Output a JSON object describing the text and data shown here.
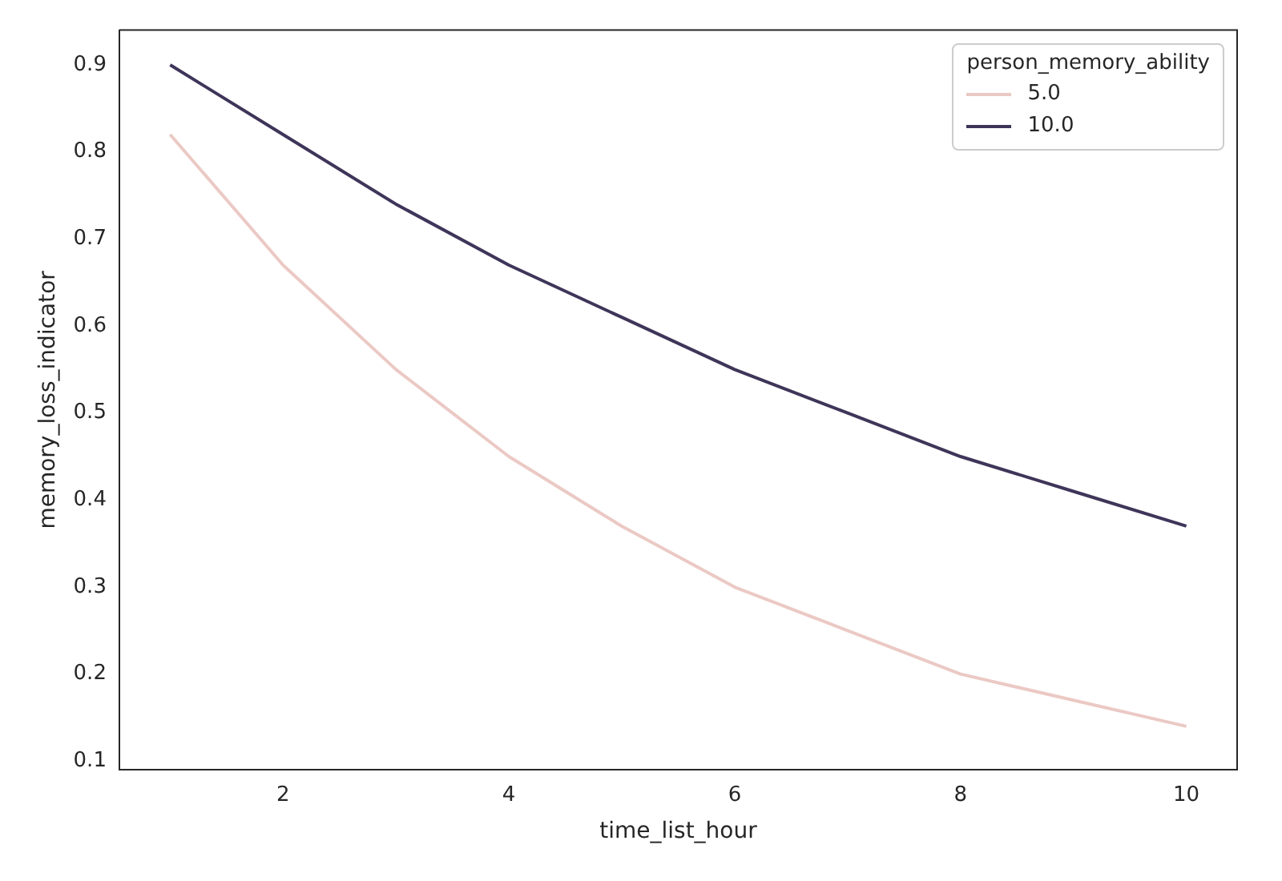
{
  "chart_data": {
    "type": "line",
    "xlabel": "time_list_hour",
    "ylabel": "memory_loss_indicator",
    "legend_title": "person_memory_ability",
    "x": [
      1,
      2,
      3,
      4,
      5,
      6,
      7,
      8,
      9,
      10
    ],
    "series": [
      {
        "name": "5.0",
        "color": "#ebc9c4",
        "values": [
          0.82,
          0.67,
          0.55,
          0.45,
          0.37,
          0.3,
          0.25,
          0.2,
          0.17,
          0.14
        ]
      },
      {
        "name": "10.0",
        "color": "#3f3559",
        "values": [
          0.9,
          0.82,
          0.74,
          0.67,
          0.61,
          0.55,
          0.5,
          0.45,
          0.41,
          0.37
        ]
      }
    ],
    "xlim": [
      0.55,
      10.45
    ],
    "xticks": [
      2,
      4,
      6,
      8,
      10
    ],
    "ylim": [
      0.09,
      0.94
    ],
    "yticks": [
      0.1,
      0.2,
      0.3,
      0.4,
      0.5,
      0.6,
      0.7,
      0.8,
      0.9
    ],
    "grid": false,
    "legend": "top right",
    "marker": "none",
    "line_style": "solid"
  }
}
